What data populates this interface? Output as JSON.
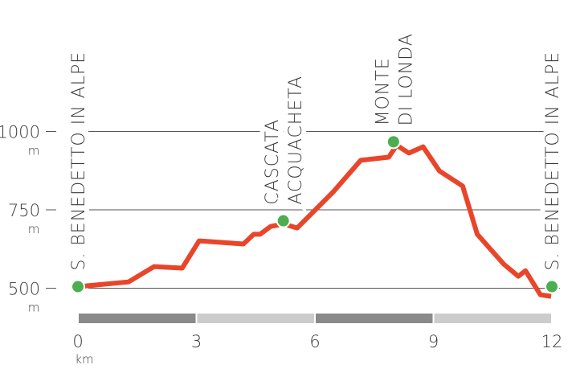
{
  "chart_data": {
    "type": "line",
    "x": [
      0,
      1.28,
      1.93,
      2.64,
      3.07,
      4.19,
      4.45,
      4.61,
      4.88,
      5.21,
      5.55,
      6.47,
      7.16,
      7.87,
      8.07,
      8.38,
      8.74,
      9.15,
      9.74,
      10.11,
      10.78,
      11.15,
      11.33,
      11.71,
      11.98
    ],
    "values": [
      505,
      520,
      569,
      564,
      651,
      641,
      672,
      672,
      697,
      705,
      692,
      808,
      908,
      918,
      956,
      931,
      951,
      874,
      826,
      672,
      577,
      538,
      556,
      479,
      474
    ],
    "color": "#e9452a",
    "xlim": [
      0,
      12
    ],
    "xticks": [
      0,
      3,
      6,
      9,
      12
    ],
    "x_unit": "km",
    "ylim": [
      400,
      1250
    ],
    "yticks": [
      500,
      750,
      1000
    ],
    "y_unit": "m",
    "grid": true,
    "waypoints": [
      {
        "name": [
          "S. BENEDETTO IN ALPE"
        ],
        "x": 0,
        "elevation": 505
      },
      {
        "name": [
          "CASCATA",
          "ACQUACHETA"
        ],
        "x": 5.2,
        "elevation": 715
      },
      {
        "name": [
          "MONTE",
          "DI LONDA"
        ],
        "x": 7.99,
        "elevation": 967
      },
      {
        "name": [
          "S. BENEDETTO IN ALPE"
        ],
        "x": 12,
        "elevation": 505
      }
    ],
    "waypoint_color": "#4cae4f"
  }
}
